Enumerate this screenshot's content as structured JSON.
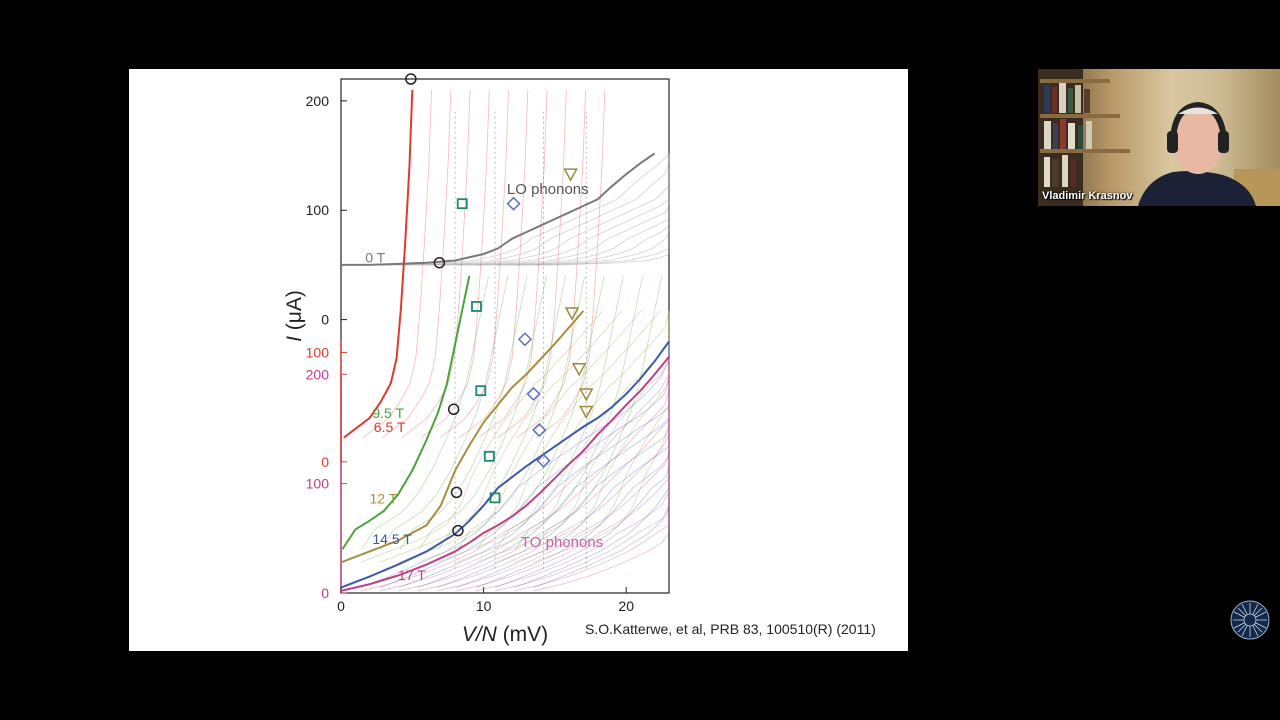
{
  "citation": "S.O.Katterwe, et al, PRB 83, 100510(R) (2011)",
  "participant": {
    "name": "Vladimir Krasnov",
    "icon": "webcam-video"
  },
  "logo": {
    "icon": "university-seal-logo"
  },
  "chart_data": {
    "type": "line",
    "xlabel": {
      "italic": "V/N",
      "rest": " (mV)"
    },
    "ylabel": {
      "italic": "I",
      "rest": " (μA)"
    },
    "xlim": [
      0,
      23
    ],
    "x_ticks": [
      0,
      10,
      20
    ],
    "y_ticks_black": [
      {
        "label": "200",
        "value": 200,
        "offset": 250
      },
      {
        "label": "100",
        "value": 100,
        "offset": 250
      },
      {
        "label": "0",
        "value": 0,
        "offset": 250
      }
    ],
    "y_ticks_red": [
      {
        "label": "100",
        "value": 100,
        "offset": 120
      },
      {
        "label": "0",
        "value": 0,
        "offset": 120
      }
    ],
    "y_ticks_magenta": [
      {
        "label": "200",
        "value": 200,
        "offset": 0
      },
      {
        "label": "100",
        "value": 100,
        "offset": 0
      },
      {
        "label": "0",
        "value": 0,
        "offset": 0
      }
    ],
    "annotations": [
      {
        "text": "LO phonons",
        "x": 14.5,
        "y": 365,
        "color": "#555555"
      },
      {
        "text": "TO phonons",
        "x": 15.5,
        "y": 42,
        "color": "#cc5fa8"
      }
    ],
    "series": [
      {
        "name": "0 T",
        "color": "#7a7a7a",
        "offset": 250,
        "label_pos": [
          1.7,
          302
        ],
        "x": [
          0,
          2,
          4,
          6,
          8,
          9,
          10,
          11,
          12,
          13,
          14,
          15,
          16,
          17,
          18,
          19,
          20,
          21,
          22
        ],
        "y": [
          50,
          50,
          51,
          52,
          54,
          57,
          60,
          65,
          74,
          80,
          86,
          92,
          98,
          104,
          110,
          122,
          133,
          143,
          152
        ]
      },
      {
        "name": "6.5 T",
        "color": "#e03a2e",
        "offset": 120,
        "label_pos": [
          2.3,
          147
        ],
        "x": [
          0.2,
          1,
          2,
          2.8,
          3.5,
          3.9,
          4.2,
          4.5,
          4.8,
          5.0
        ],
        "y": [
          22,
          30,
          40,
          55,
          72,
          95,
          140,
          200,
          270,
          340
        ]
      },
      {
        "name": "9.5 T",
        "color": "#4aa33a",
        "offset": 0,
        "label_pos": [
          2.2,
          160
        ],
        "x": [
          0.1,
          1,
          2,
          3,
          4,
          5,
          6,
          6.8,
          7.4,
          7.8,
          8.2,
          8.6,
          9
        ],
        "y": [
          40,
          58,
          66,
          75,
          90,
          112,
          140,
          165,
          190,
          215,
          240,
          265,
          290
        ]
      },
      {
        "name": "12 T",
        "color": "#a48f3c",
        "offset": 0,
        "label_pos": [
          2.0,
          82
        ],
        "x": [
          0,
          2,
          4,
          6,
          7,
          8,
          9,
          10,
          11,
          12,
          13,
          14,
          15,
          16,
          17
        ],
        "y": [
          28,
          38,
          48,
          62,
          80,
          112,
          135,
          156,
          172,
          188,
          200,
          214,
          228,
          243,
          258
        ]
      },
      {
        "name": "14.5 T",
        "color": "#3f58a8",
        "offset": 0,
        "label_pos": [
          2.2,
          45
        ],
        "x": [
          0,
          2,
          4,
          6,
          8,
          9,
          10,
          11,
          12,
          13,
          14,
          15,
          16,
          17,
          18,
          19,
          20,
          21,
          22,
          23
        ],
        "y": [
          5,
          15,
          26,
          38,
          54,
          66,
          80,
          96,
          106,
          116,
          125,
          134,
          143,
          152,
          160,
          170,
          182,
          196,
          212,
          230
        ]
      },
      {
        "name": "17 T",
        "color": "#c23f85",
        "offset": 0,
        "label_pos": [
          4.0,
          12
        ],
        "x": [
          0,
          2,
          4,
          6,
          8,
          9,
          10,
          11,
          12,
          13,
          14,
          15,
          16,
          17,
          18,
          19,
          20,
          21,
          22,
          23
        ],
        "y": [
          2,
          8,
          16,
          26,
          38,
          46,
          55,
          62,
          70,
          80,
          92,
          105,
          118,
          130,
          145,
          158,
          172,
          185,
          200,
          216
        ]
      }
    ],
    "markers": [
      {
        "shape": "circle",
        "x": 4.9,
        "y": 470
      },
      {
        "shape": "circle",
        "x": 6.9,
        "y": 302
      },
      {
        "shape": "circle",
        "x": 7.9,
        "y": 168
      },
      {
        "shape": "circle",
        "x": 8.1,
        "y": 92
      },
      {
        "shape": "circle",
        "x": 8.2,
        "y": 57
      },
      {
        "shape": "square",
        "x": 8.5,
        "y": 356
      },
      {
        "shape": "square",
        "x": 9.5,
        "y": 262
      },
      {
        "shape": "square",
        "x": 9.8,
        "y": 185
      },
      {
        "shape": "square",
        "x": 10.4,
        "y": 125
      },
      {
        "shape": "square",
        "x": 10.8,
        "y": 87
      },
      {
        "shape": "diamond",
        "x": 12.1,
        "y": 356
      },
      {
        "shape": "diamond",
        "x": 12.9,
        "y": 232
      },
      {
        "shape": "diamond",
        "x": 13.5,
        "y": 182
      },
      {
        "shape": "diamond",
        "x": 13.9,
        "y": 149
      },
      {
        "shape": "diamond",
        "x": 14.2,
        "y": 121
      },
      {
        "shape": "triangle",
        "x": 16.1,
        "y": 383
      },
      {
        "shape": "triangle",
        "x": 16.2,
        "y": 256
      },
      {
        "shape": "triangle",
        "x": 16.7,
        "y": 205
      },
      {
        "shape": "triangle",
        "x": 17.2,
        "y": 182
      },
      {
        "shape": "triangle",
        "x": 17.2,
        "y": 166
      }
    ],
    "marker_colors": {
      "circle": "#222222",
      "square": "#1c8a6e",
      "diamond": "#5d6fc0",
      "triangle": "#9c8a3c"
    }
  }
}
